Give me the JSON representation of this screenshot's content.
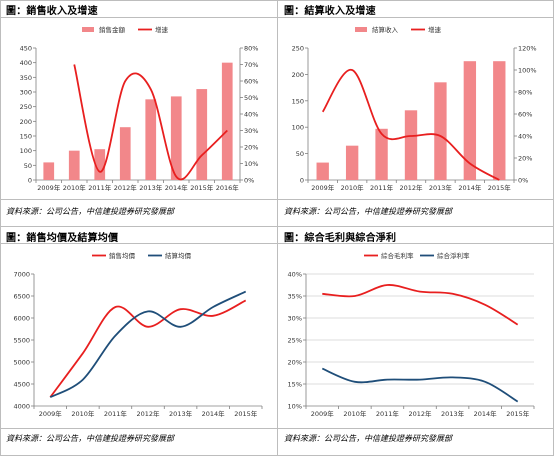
{
  "panels": [
    {
      "title": "圖：銷售收入及增速",
      "source": "資料來源：公司公告，中信建投證券研究發展部",
      "chart_data": {
        "type": "bar+line",
        "categories": [
          "2009年",
          "2010年",
          "2011年",
          "2012年",
          "2013年",
          "2014年",
          "2015年",
          "2016年"
        ],
        "series": [
          {
            "name": "銷售金額",
            "kind": "bar",
            "axis": "left",
            "values": [
              60,
              100,
              105,
              180,
              275,
              285,
              310,
              400
            ]
          },
          {
            "name": "增速",
            "kind": "line",
            "axis": "right",
            "values": [
              null,
              70,
              5,
              60,
              55,
              2,
              15,
              30
            ]
          }
        ],
        "ylim": [
          0,
          450
        ],
        "yticks": [
          0,
          50,
          100,
          150,
          200,
          250,
          300,
          350,
          400,
          450
        ],
        "y2lim": [
          0,
          80
        ],
        "y2ticks": [
          "0%",
          "10%",
          "20%",
          "30%",
          "40%",
          "50%",
          "60%",
          "70%",
          "80%"
        ],
        "legend": "top",
        "grid": false
      }
    },
    {
      "title": "圖：結算收入及增速",
      "source": "資料來源：公司公告，中信建投證券研究發展部",
      "chart_data": {
        "type": "bar+line",
        "categories": [
          "2009年",
          "2010年",
          "2011年",
          "2012年",
          "2013年",
          "2014年",
          "2015年"
        ],
        "series": [
          {
            "name": "結算收入",
            "kind": "bar",
            "axis": "left",
            "values": [
              33,
              65,
              97,
              132,
              185,
              225,
              225
            ]
          },
          {
            "name": "增速",
            "kind": "line",
            "axis": "right",
            "values": [
              62,
              100,
              42,
              40,
              40,
              15,
              0
            ]
          }
        ],
        "ylim": [
          0,
          250
        ],
        "yticks": [
          0,
          50,
          100,
          150,
          200,
          250
        ],
        "y2lim": [
          0,
          120
        ],
        "y2ticks": [
          "0%",
          "20%",
          "40%",
          "60%",
          "80%",
          "100%",
          "120%"
        ],
        "legend": "top",
        "grid": false
      }
    },
    {
      "title": "圖：銷售均價及結算均價",
      "source": "資料來源：公司公告，中信建投證券研究發展部",
      "chart_data": {
        "type": "line",
        "categories": [
          "2009年",
          "2010年",
          "2011年",
          "2012年",
          "2013年",
          "2014年",
          "2015年"
        ],
        "series": [
          {
            "name": "銷售均價",
            "values": [
              4200,
              5200,
              6250,
              5800,
              6200,
              6050,
              6400
            ]
          },
          {
            "name": "結算均價",
            "values": [
              4200,
              4600,
              5600,
              6150,
              5800,
              6250,
              6600
            ]
          }
        ],
        "ylim": [
          4000,
          7000
        ],
        "yticks": [
          4000,
          4500,
          5000,
          5500,
          6000,
          6500,
          7000
        ],
        "legend": "top",
        "grid": false
      }
    },
    {
      "title": "圖：綜合毛利與綜合淨利",
      "source": "資料來源：公司公告，中信建投證券研究發展部",
      "chart_data": {
        "type": "line",
        "categories": [
          "2009年",
          "2010年",
          "2011年",
          "2012年",
          "2013年",
          "2014年",
          "2015年"
        ],
        "series": [
          {
            "name": "綜合毛利率",
            "values": [
              35.5,
              35,
              37.5,
              36,
              35.5,
              33,
              28.5
            ]
          },
          {
            "name": "綜合淨利率",
            "values": [
              18.5,
              15.5,
              16,
              16,
              16.5,
              15.5,
              11
            ]
          }
        ],
        "ylim": [
          10,
          40
        ],
        "yticks": [
          "10%",
          "15%",
          "20%",
          "25%",
          "30%",
          "35%",
          "40%"
        ],
        "legend": "top",
        "grid": true
      }
    }
  ],
  "colors": {
    "bar": "#f2878a",
    "red": "#e81f1f",
    "blue": "#1f4e79",
    "grid": "#d0d0d0",
    "axis": "#808080"
  }
}
